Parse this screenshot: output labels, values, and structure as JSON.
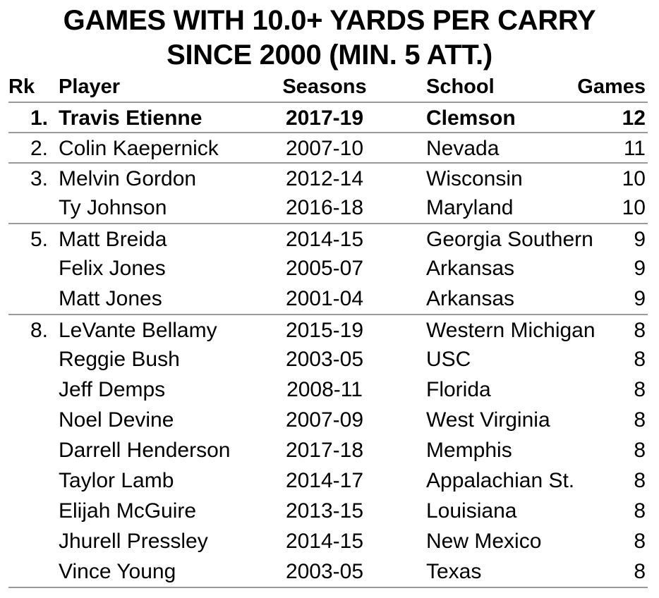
{
  "title_line1": "GAMES WITH 10.0+ YARDS PER CARRY",
  "title_line2": "SINCE 2000 (MIN. 5 ATT.)",
  "headers": {
    "rk": "Rk",
    "player": "Player",
    "seasons": "Seasons",
    "school": "School",
    "games": "Games"
  },
  "rows": [
    {
      "rk": "1.",
      "player": "Travis Etienne",
      "seasons": "2017-19",
      "school": "Clemson",
      "games": "12"
    },
    {
      "rk": "2.",
      "player": "Colin Kaepernick",
      "seasons": "2007-10",
      "school": "Nevada",
      "games": "11"
    },
    {
      "rk": "3.",
      "player": "Melvin Gordon",
      "seasons": "2012-14",
      "school": "Wisconsin",
      "games": "10"
    },
    {
      "rk": "",
      "player": "Ty Johnson",
      "seasons": "2016-18",
      "school": "Maryland",
      "games": "10"
    },
    {
      "rk": "5.",
      "player": "Matt Breida",
      "seasons": "2014-15",
      "school": "Georgia Southern",
      "games": "9"
    },
    {
      "rk": "",
      "player": "Felix Jones",
      "seasons": "2005-07",
      "school": "Arkansas",
      "games": "9"
    },
    {
      "rk": "",
      "player": "Matt Jones",
      "seasons": "2001-04",
      "school": "Arkansas",
      "games": "9"
    },
    {
      "rk": "8.",
      "player": "LeVante Bellamy",
      "seasons": "2015-19",
      "school": "Western Michigan",
      "games": "8"
    },
    {
      "rk": "",
      "player": "Reggie Bush",
      "seasons": "2003-05",
      "school": "USC",
      "games": "8"
    },
    {
      "rk": "",
      "player": "Jeff Demps",
      "seasons": "2008-11",
      "school": "Florida",
      "games": "8"
    },
    {
      "rk": "",
      "player": "Noel Devine",
      "seasons": "2007-09",
      "school": "West Virginia",
      "games": "8"
    },
    {
      "rk": "",
      "player": "Darrell Henderson",
      "seasons": "2017-18",
      "school": "Memphis",
      "games": "8"
    },
    {
      "rk": "",
      "player": "Taylor Lamb",
      "seasons": "2014-17",
      "school": "Appalachian St.",
      "games": "8"
    },
    {
      "rk": "",
      "player": "Elijah McGuire",
      "seasons": "2013-15",
      "school": "Louisiana",
      "games": "8"
    },
    {
      "rk": "",
      "player": "Jhurell Pressley",
      "seasons": "2014-15",
      "school": "New Mexico",
      "games": "8"
    },
    {
      "rk": "",
      "player": "Vince Young",
      "seasons": "2003-05",
      "school": "Texas",
      "games": "8"
    }
  ]
}
